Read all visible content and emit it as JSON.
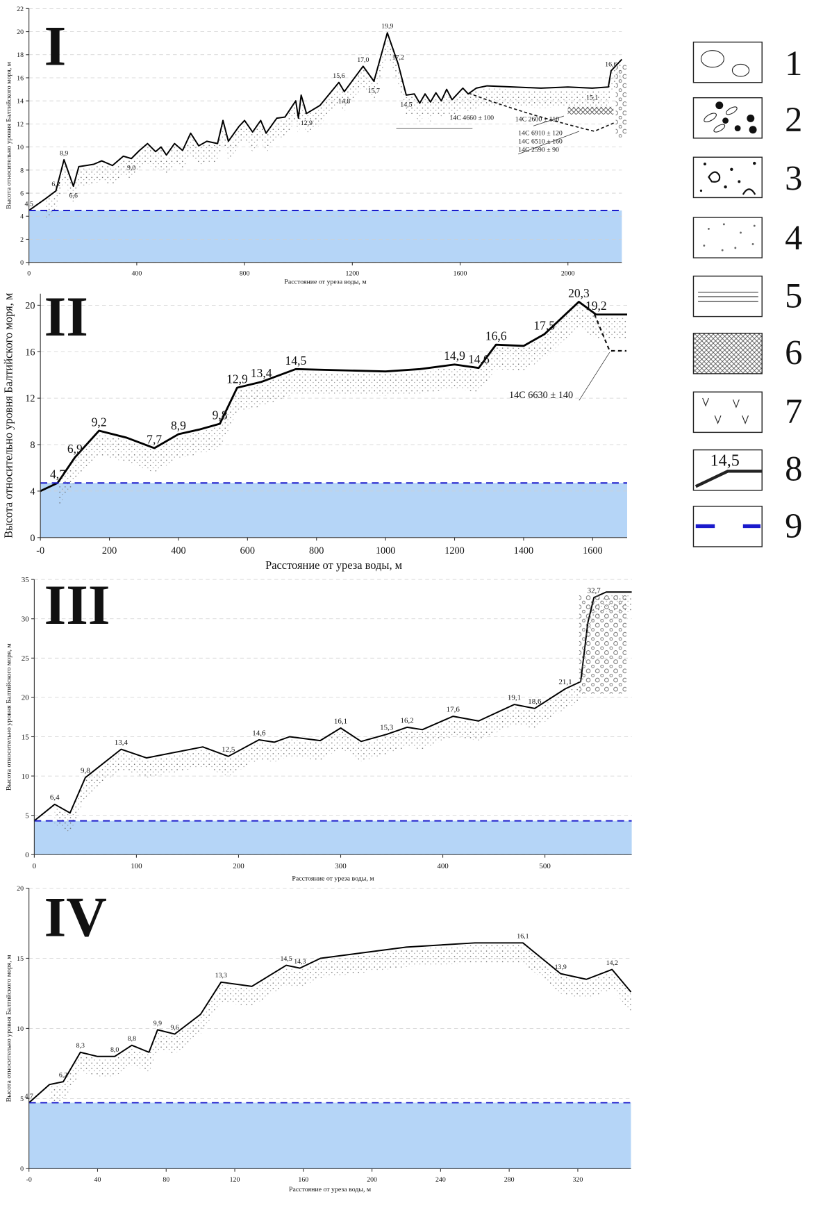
{
  "chart_data": [
    {
      "type": "line",
      "title": "I",
      "xlabel": "Расстояние от уреза воды, м",
      "ylabel": "Высота относительно уровня Балтийского моря, м",
      "xlim": [
        0,
        2200
      ],
      "ylim": [
        0,
        22
      ],
      "xticks": [
        0,
        400,
        800,
        1200,
        1600,
        2000
      ],
      "yticks": [
        0,
        2,
        4,
        6,
        8,
        10,
        12,
        14,
        16,
        18,
        20,
        22
      ],
      "grid": true,
      "sea_level": 4.5,
      "color": "#000000",
      "x": [
        0,
        60,
        100,
        130,
        165,
        185,
        240,
        270,
        310,
        350,
        380,
        410,
        440,
        470,
        490,
        510,
        540,
        570,
        600,
        630,
        660,
        700,
        720,
        740,
        780,
        800,
        830,
        860,
        880,
        920,
        950,
        990,
        1000,
        1010,
        1030,
        1080,
        1150,
        1170,
        1240,
        1280,
        1330,
        1370,
        1400,
        1430,
        1450,
        1470,
        1490,
        1510,
        1530,
        1550,
        1570,
        1610,
        1630,
        1660,
        1700,
        1800,
        1900,
        2000,
        2090,
        2150,
        2160,
        2200
      ],
      "values": [
        4.5,
        5.5,
        6.2,
        8.9,
        6.6,
        8.3,
        8.5,
        8.8,
        8.4,
        9.2,
        9.0,
        9.7,
        10.3,
        9.6,
        10.0,
        9.3,
        10.3,
        9.7,
        11.2,
        10.1,
        10.5,
        10.3,
        12.3,
        10.5,
        11.8,
        12.3,
        11.3,
        12.3,
        11.2,
        12.5,
        12.6,
        14.0,
        12.5,
        14.5,
        12.9,
        13.6,
        15.6,
        14.8,
        17.0,
        15.7,
        19.9,
        17.2,
        14.5,
        14.6,
        13.8,
        14.6,
        13.9,
        14.7,
        14.0,
        15.0,
        14.1,
        15.1,
        14.6,
        15.1,
        15.3,
        15.2,
        15.1,
        15.2,
        15.1,
        15.2,
        16.6,
        17.6
      ],
      "value_labels": [
        "4,5",
        null,
        "6,2",
        "8,9",
        "6,6",
        null,
        null,
        null,
        null,
        null,
        "9,0",
        null,
        null,
        null,
        null,
        null,
        null,
        null,
        null,
        null,
        null,
        null,
        null,
        null,
        null,
        null,
        null,
        null,
        null,
        null,
        null,
        null,
        null,
        null,
        "12,9",
        null,
        "15,6",
        "14,8",
        "17,0",
        "15,7",
        "19,9",
        "17,2",
        "14,5",
        null,
        null,
        null,
        null,
        null,
        null,
        null,
        null,
        null,
        null,
        null,
        null,
        null,
        null,
        null,
        "15,1",
        null,
        "16,6",
        null
      ],
      "annotations": [
        "14C 4660 ± 100",
        "14C 2600 ± 110",
        "14C 6910 ± 120",
        "14C 6510 ± 160",
        "14C 2590 ± 90"
      ]
    },
    {
      "type": "line",
      "title": "II",
      "xlabel": "Расстояние от уреза воды, м",
      "ylabel": "Высота относительно уровня Балтийского моря, м",
      "xlim": [
        0,
        1700
      ],
      "ylim": [
        0,
        21
      ],
      "xticks": [
        {
          "value": 0,
          "label": "-0"
        },
        200,
        400,
        600,
        800,
        1000,
        1200,
        1400,
        1600
      ],
      "yticks": [
        0,
        4,
        8,
        12,
        16,
        20
      ],
      "grid": true,
      "sea_level": 4.7,
      "color": "#000000",
      "x": [
        0,
        50,
        100,
        170,
        250,
        330,
        400,
        460,
        520,
        570,
        640,
        740,
        1000,
        1100,
        1200,
        1270,
        1320,
        1400,
        1460,
        1560,
        1610,
        1700
      ],
      "values": [
        4.0,
        4.7,
        6.9,
        9.2,
        8.6,
        7.7,
        8.9,
        9.3,
        9.8,
        12.9,
        13.4,
        14.5,
        14.3,
        14.5,
        14.9,
        14.6,
        16.6,
        16.5,
        17.5,
        20.3,
        19.2,
        19.2
      ],
      "value_labels": [
        null,
        "4,7",
        "6,9",
        "9,2",
        null,
        "7,7",
        "8,9",
        null,
        "9,8",
        "12,9",
        "13,4",
        "14,5",
        null,
        null,
        "14,9",
        "14,6",
        "16,6",
        null,
        "17,5",
        "20,3",
        "19,2",
        null
      ],
      "annotations": [
        "14C 6630 ± 140"
      ]
    },
    {
      "type": "line",
      "title": "III",
      "xlabel": "Расстояние от уреза воды, м",
      "ylabel": "Высота относительно уровня Балтийского моря, м",
      "xlim": [
        0,
        585
      ],
      "ylim": [
        0,
        35
      ],
      "xticks": [
        0,
        100,
        200,
        300,
        400,
        500
      ],
      "yticks": [
        0,
        5,
        10,
        15,
        20,
        25,
        30,
        35
      ],
      "grid": true,
      "sea_level": 4.3,
      "color": "#000000",
      "x": [
        0,
        20,
        35,
        50,
        85,
        110,
        165,
        190,
        220,
        235,
        250,
        280,
        300,
        320,
        345,
        365,
        380,
        410,
        435,
        470,
        490,
        520,
        535,
        542,
        548,
        560,
        585
      ],
      "values": [
        4.3,
        6.4,
        5.3,
        9.8,
        13.4,
        12.3,
        13.7,
        12.5,
        14.6,
        14.3,
        15.0,
        14.5,
        16.1,
        14.4,
        15.3,
        16.2,
        15.9,
        17.6,
        17.0,
        19.1,
        18.6,
        21.1,
        22.0,
        29.5,
        32.7,
        33.4,
        33.4
      ],
      "value_labels": [
        null,
        "6,4",
        null,
        "9,8",
        "13,4",
        null,
        null,
        "12,5",
        "14,6",
        null,
        null,
        null,
        "16,1",
        null,
        "15,3",
        "16,2",
        null,
        "17,6",
        null,
        "19,1",
        "18,6",
        "21,1",
        null,
        null,
        "32,7",
        null,
        null
      ]
    },
    {
      "type": "line",
      "title": "IV",
      "xlabel": "Расстояние от уреза воды, м",
      "ylabel": "Высота относительно уровня Балтийского моря, м",
      "xlim": [
        0,
        351
      ],
      "ylim": [
        0,
        20
      ],
      "xticks": [
        {
          "value": 0,
          "label": "-0"
        },
        40,
        80,
        120,
        160,
        200,
        240,
        280,
        320
      ],
      "yticks": [
        0,
        5,
        10,
        15,
        20
      ],
      "grid": true,
      "sea_level": 4.7,
      "color": "#000000",
      "x": [
        0,
        12,
        20,
        30,
        40,
        50,
        60,
        70,
        75,
        85,
        100,
        112,
        130,
        150,
        158,
        170,
        220,
        260,
        288,
        310,
        325,
        340,
        351
      ],
      "values": [
        4.7,
        6.0,
        6.2,
        8.3,
        8.0,
        8.0,
        8.8,
        8.3,
        9.9,
        9.6,
        11.0,
        13.3,
        13.0,
        14.5,
        14.3,
        15.0,
        15.8,
        16.1,
        16.1,
        13.9,
        13.5,
        14.2,
        12.6
      ],
      "value_labels": [
        "4,7",
        null,
        "6,2",
        "8,3",
        null,
        "8,0",
        "8,8",
        null,
        "9,9",
        "9,6",
        null,
        "13,3",
        null,
        "14,5",
        "14,3",
        null,
        null,
        null,
        "16,1",
        "13,9",
        null,
        "14,2",
        null
      ]
    }
  ],
  "legend": {
    "items": [
      "1",
      "2",
      "3",
      "4",
      "5",
      "6",
      "7",
      "8",
      "9"
    ],
    "sample_label": "14,5"
  }
}
